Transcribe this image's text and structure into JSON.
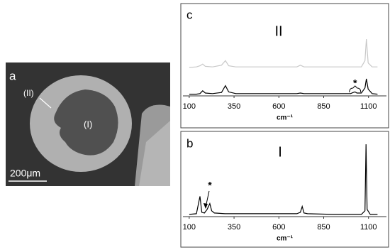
{
  "panel_a": {
    "label": "a",
    "annotations": [
      "(II)",
      "(I)"
    ],
    "scale_bar": "200μm"
  },
  "chart_data": [
    {
      "type": "line",
      "panel_label": "c",
      "title": "II",
      "x_label": "cm⁻¹",
      "xlim": [
        65,
        1200
      ],
      "xticks": [
        100,
        350,
        600,
        850,
        1100
      ],
      "ylim": [
        0,
        105
      ],
      "x": [
        100,
        140,
        160,
        175,
        190,
        230,
        280,
        302,
        320,
        360,
        500,
        700,
        720,
        740,
        900,
        1000,
        1015,
        1025,
        1035,
        1060,
        1080,
        1088,
        1098,
        1120,
        1150
      ],
      "series": [
        {
          "color": "#c8c8c8",
          "values": [
            50,
            51,
            53,
            56,
            52,
            51,
            54,
            62,
            53,
            51,
            51,
            51,
            54,
            51,
            51,
            51,
            51,
            51,
            51,
            51,
            62,
            100,
            58,
            51,
            51
          ]
        },
        {
          "color": "#000000",
          "values": [
            3,
            3,
            4,
            9,
            5,
            4,
            6,
            18,
            7,
            4,
            4,
            4,
            5,
            4,
            4,
            4,
            6,
            7,
            5,
            5,
            14,
            30,
            12,
            4,
            3
          ]
        }
      ],
      "annotations": [
        "*"
      ]
    },
    {
      "type": "line",
      "panel_label": "b",
      "title": "I",
      "x_label": "cm⁻¹",
      "xlim": [
        65,
        1200
      ],
      "xticks": [
        100,
        350,
        600,
        850,
        1100
      ],
      "ylim": [
        0,
        105
      ],
      "x": [
        100,
        140,
        160,
        170,
        185,
        200,
        215,
        225,
        240,
        300,
        500,
        700,
        720,
        730,
        740,
        760,
        900,
        1060,
        1080,
        1086,
        1092,
        1110,
        1150
      ],
      "series": [
        {
          "color": "#000000",
          "values": [
            3,
            4,
            28,
            6,
            5,
            10,
            18,
            8,
            5,
            4,
            4,
            4,
            6,
            14,
            5,
            4,
            3,
            3,
            8,
            100,
            10,
            3,
            3
          ]
        }
      ],
      "annotations": [
        "*"
      ]
    }
  ]
}
